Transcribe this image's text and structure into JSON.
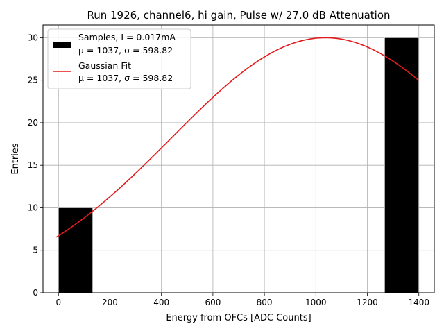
{
  "chart_data": {
    "type": "bar",
    "title": "Run 1926, channel6, hi gain, Pulse w/ 27.0 dB Attenuation",
    "xlabel": "Energy from OFCs [ADC Counts]",
    "ylabel": "Entries",
    "xlim": [
      -60,
      1460
    ],
    "ylim": [
      0,
      31.5
    ],
    "xticks": [
      "0",
      "200",
      "400",
      "600",
      "800",
      "1000",
      "1200",
      "1400"
    ],
    "yticks": [
      "0",
      "5",
      "10",
      "15",
      "20",
      "25",
      "30"
    ],
    "grid": true,
    "legend_position": "top-left",
    "histogram": {
      "name": "Samples, I = 0.017mA",
      "stats": "μ = 1037, σ = 598.82",
      "color": "#000000",
      "bins": [
        {
          "x0": 0,
          "x1": 133,
          "count": 10
        },
        {
          "x0": 1267,
          "x1": 1400,
          "count": 30
        }
      ]
    },
    "fit": {
      "name": "Gaussian Fit",
      "stats": "μ = 1037, σ = 598.82",
      "color": "#e31a1c",
      "mu": 1037,
      "sigma": 598.82,
      "amplitude": 30,
      "x_range": [
        -8,
        1400
      ]
    }
  }
}
